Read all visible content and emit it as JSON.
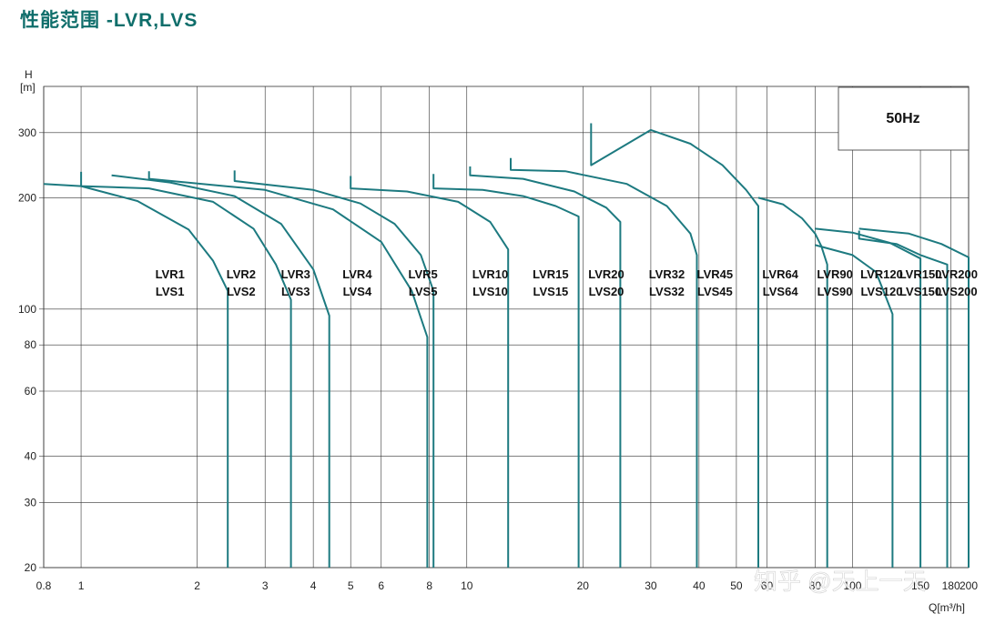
{
  "page_title": "性能范围 -LVR,LVS",
  "watermark": "知乎 @天上一天",
  "chart_data": {
    "type": "line",
    "title": "性能范围 -LVR,LVS",
    "frequency_label": "50Hz",
    "x_axis": {
      "label": "Q[m³/h]",
      "scale": "log",
      "range": [
        0.8,
        200
      ],
      "ticks": [
        0.8,
        1,
        2,
        3,
        4,
        5,
        6,
        8,
        10,
        20,
        30,
        40,
        50,
        60,
        80,
        100,
        150,
        180,
        200
      ],
      "tick_labels": [
        "0.8",
        "1",
        "2",
        "3",
        "4",
        "5",
        "6",
        "8",
        "10",
        "20",
        "30",
        "40",
        "50",
        "60",
        "80",
        "100",
        "150",
        "180",
        "200"
      ]
    },
    "y_axis": {
      "label_top": "H",
      "label_unit": "[m]",
      "scale": "log",
      "range": [
        20,
        400
      ],
      "ticks": [
        20,
        30,
        40,
        60,
        80,
        100,
        200,
        300
      ],
      "tick_labels": [
        "20",
        "30",
        "40",
        "60",
        "80",
        "100",
        "200",
        "300"
      ]
    },
    "grid": true,
    "series": [
      {
        "name": "LVR1 LVS1",
        "points": [
          [
            0.8,
            218
          ],
          [
            1,
            215
          ],
          [
            1.4,
            196
          ],
          [
            1.9,
            164
          ],
          [
            2.2,
            135
          ],
          [
            2.4,
            112
          ],
          [
            2.4,
            20
          ]
        ]
      },
      {
        "name": "LVR2 LVS2",
        "points": [
          [
            1,
            235
          ],
          [
            1,
            215
          ],
          [
            1.5,
            212
          ],
          [
            2.2,
            195
          ],
          [
            2.8,
            165
          ],
          [
            3.2,
            132
          ],
          [
            3.5,
            106
          ],
          [
            3.5,
            20
          ]
        ]
      },
      {
        "name": "LVR3 LVS3",
        "points": [
          [
            1.2,
            230
          ],
          [
            1.7,
            220
          ],
          [
            2.5,
            202
          ],
          [
            3.3,
            170
          ],
          [
            4,
            128
          ],
          [
            4.4,
            96
          ],
          [
            4.4,
            20
          ]
        ]
      },
      {
        "name": "LVR4 LVS4",
        "points": [
          [
            1.5,
            236
          ],
          [
            1.5,
            225
          ],
          [
            3,
            210
          ],
          [
            4.5,
            186
          ],
          [
            6,
            152
          ],
          [
            7.2,
            112
          ],
          [
            7.9,
            84
          ],
          [
            7.9,
            20
          ]
        ]
      },
      {
        "name": "LVR5 LVS5",
        "points": [
          [
            2.5,
            237
          ],
          [
            2.5,
            222
          ],
          [
            4,
            210
          ],
          [
            5.3,
            193
          ],
          [
            6.5,
            170
          ],
          [
            7.6,
            140
          ],
          [
            8.2,
            112
          ],
          [
            8.2,
            20
          ]
        ]
      },
      {
        "name": "LVR10 LVS10",
        "points": [
          [
            5,
            229
          ],
          [
            5,
            212
          ],
          [
            7,
            208
          ],
          [
            9.5,
            195
          ],
          [
            11.5,
            172
          ],
          [
            12.8,
            145
          ],
          [
            12.8,
            20
          ]
        ]
      },
      {
        "name": "LVR15 LVS15",
        "points": [
          [
            8.2,
            232
          ],
          [
            8.2,
            212
          ],
          [
            11,
            210
          ],
          [
            14,
            202
          ],
          [
            17,
            190
          ],
          [
            19.5,
            178
          ],
          [
            19.5,
            20
          ]
        ]
      },
      {
        "name": "LVR20 LVS20",
        "points": [
          [
            10.2,
            243
          ],
          [
            10.2,
            230
          ],
          [
            14,
            225
          ],
          [
            19,
            208
          ],
          [
            23,
            188
          ],
          [
            25,
            172
          ],
          [
            25,
            20
          ]
        ]
      },
      {
        "name": "LVR32 LVS32",
        "points": [
          [
            13,
            256
          ],
          [
            13,
            238
          ],
          [
            18,
            236
          ],
          [
            26,
            218
          ],
          [
            33,
            190
          ],
          [
            38,
            160
          ],
          [
            39.5,
            140
          ],
          [
            39.5,
            20
          ]
        ]
      },
      {
        "name": "LVR45 LVS45",
        "points": [
          [
            21,
            318
          ],
          [
            21,
            245
          ],
          [
            30,
            305
          ],
          [
            38,
            280
          ],
          [
            46,
            245
          ],
          [
            53,
            210
          ],
          [
            57,
            190
          ],
          [
            57,
            20
          ]
        ]
      },
      {
        "name": "LVR64 LVS64",
        "points": [
          [
            57,
            200
          ],
          [
            66,
            192
          ],
          [
            74,
            176
          ],
          [
            80,
            160
          ],
          [
            83,
            148
          ],
          [
            86,
            132
          ],
          [
            86,
            20
          ]
        ]
      },
      {
        "name": "LVR90 LVS90",
        "points": [
          [
            80,
            165
          ],
          [
            100,
            161
          ],
          [
            125,
            151
          ],
          [
            150,
            137
          ],
          [
            150,
            20
          ]
        ]
      },
      {
        "name": "LVR120 LVS120",
        "points": [
          [
            80,
            149
          ],
          [
            100,
            140
          ],
          [
            115,
            126
          ],
          [
            122,
            108
          ],
          [
            127,
            97
          ],
          [
            127,
            20
          ]
        ]
      },
      {
        "name": "LVR150 LVS150",
        "points": [
          [
            104,
            163
          ],
          [
            104,
            155
          ],
          [
            130,
            150
          ],
          [
            150,
            140
          ],
          [
            176,
            132
          ],
          [
            176,
            20
          ]
        ]
      },
      {
        "name": "LVR200 LVS200",
        "points": [
          [
            104,
            165
          ],
          [
            140,
            160
          ],
          [
            170,
            150
          ],
          [
            200,
            138
          ],
          [
            200,
            20
          ]
        ]
      }
    ],
    "model_labels": [
      {
        "lines": [
          "LVR1",
          "LVS1"
        ],
        "q": 1.7
      },
      {
        "lines": [
          "LVR2",
          "LVS2"
        ],
        "q": 2.6
      },
      {
        "lines": [
          "LVR3",
          "LVS3"
        ],
        "q": 3.6
      },
      {
        "lines": [
          "LVR4",
          "LVS4"
        ],
        "q": 5.2
      },
      {
        "lines": [
          "LVR5",
          "LVS5"
        ],
        "q": 7.7
      },
      {
        "lines": [
          "LVR10",
          "LVS10"
        ],
        "q": 11.5
      },
      {
        "lines": [
          "LVR15",
          "LVS15"
        ],
        "q": 16.5
      },
      {
        "lines": [
          "LVR20",
          "LVS20"
        ],
        "q": 23
      },
      {
        "lines": [
          "LVR32",
          "LVS32"
        ],
        "q": 33
      },
      {
        "lines": [
          "LVR45",
          "LVS45"
        ],
        "q": 44
      },
      {
        "lines": [
          "LVR64",
          "LVS64"
        ],
        "q": 65
      },
      {
        "lines": [
          "LVR90",
          "LVS90"
        ],
        "q": 90
      },
      {
        "lines": [
          "LVR120",
          "LVS120"
        ],
        "q": 119
      },
      {
        "lines": [
          "LVR150",
          "LVS150"
        ],
        "q": 150
      },
      {
        "lines": [
          "LVR200",
          "LVS200"
        ],
        "q": 186
      }
    ],
    "curve_color": "#1d7a80"
  }
}
